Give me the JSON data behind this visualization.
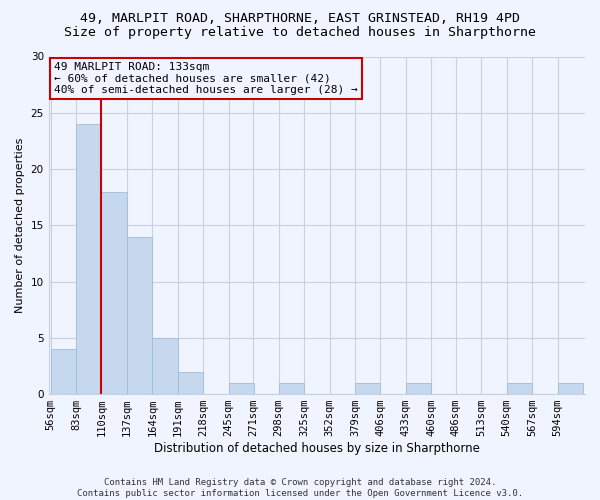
{
  "title_line1": "49, MARLPIT ROAD, SHARPTHORNE, EAST GRINSTEAD, RH19 4PD",
  "title_line2": "Size of property relative to detached houses in Sharpthorne",
  "xlabel": "Distribution of detached houses by size in Sharpthorne",
  "ylabel": "Number of detached properties",
  "bar_color": "#c5d8ed",
  "bar_edgecolor": "#a0bcd8",
  "grid_color": "#c8d0e0",
  "vline_color": "#cc0000",
  "vline_x_bin_index": 2,
  "annotation_line1": "49 MARLPIT ROAD: 133sqm",
  "annotation_line2": "← 60% of detached houses are smaller (42)",
  "annotation_line3": "40% of semi-detached houses are larger (28) →",
  "annotation_box_color": "#cc0000",
  "bins": [
    56,
    83,
    110,
    137,
    164,
    191,
    218,
    245,
    271,
    298,
    325,
    352,
    379,
    406,
    433,
    460,
    486,
    513,
    540,
    567,
    594
  ],
  "bin_width": 27,
  "values": [
    4,
    24,
    18,
    14,
    5,
    2,
    0,
    1,
    0,
    1,
    0,
    0,
    1,
    0,
    1,
    0,
    0,
    0,
    1,
    0,
    1
  ],
  "ylim": [
    0,
    30
  ],
  "yticks": [
    0,
    5,
    10,
    15,
    20,
    25,
    30
  ],
  "footer_line1": "Contains HM Land Registry data © Crown copyright and database right 2024.",
  "footer_line2": "Contains public sector information licensed under the Open Government Licence v3.0.",
  "bg_color": "#f0f4ff",
  "title_fontsize": 9.5,
  "subtitle_fontsize": 9.5,
  "xlabel_fontsize": 8.5,
  "ylabel_fontsize": 8,
  "tick_fontsize": 7.5,
  "annotation_fontsize": 8,
  "footer_fontsize": 6.5
}
